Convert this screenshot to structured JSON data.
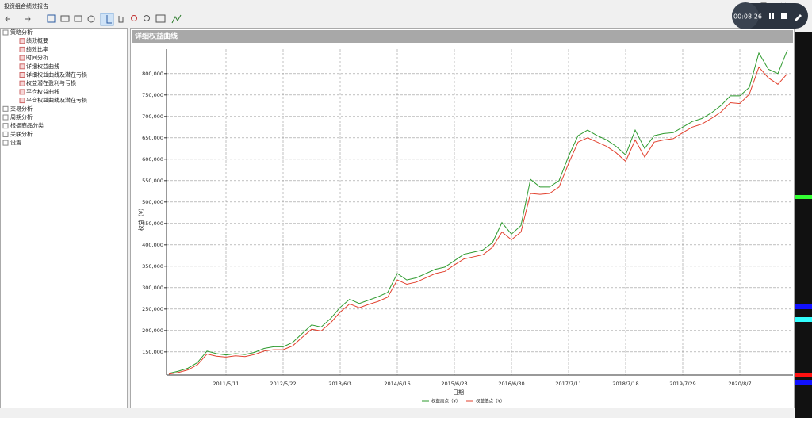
{
  "window": {
    "title": "投资组合绩效报告",
    "timer": "00:08:26"
  },
  "tree": [
    {
      "label": "策略分析",
      "children": [
        "绩效概要",
        "绩效比率",
        "时间分析",
        "详细权益曲线",
        "详细权益曲线及潜在亏损",
        "权益潜在盈利与亏损",
        "平仓权益曲线",
        "平仓权益曲线及潜在亏损"
      ]
    },
    {
      "label": "交易分析"
    },
    {
      "label": "周期分析"
    },
    {
      "label": "根据商品分类"
    },
    {
      "label": "关联分析"
    },
    {
      "label": "设置"
    }
  ],
  "panel_title": "详细权益曲线",
  "chart_data": {
    "type": "line",
    "y_label": "权益（¥）",
    "x_label": "日期",
    "categories": [
      null,
      null,
      null,
      null,
      null,
      null,
      "2011/5/11",
      null,
      null,
      null,
      null,
      null,
      "2012/5/22",
      null,
      null,
      null,
      null,
      null,
      "2013/6/3",
      null,
      null,
      null,
      null,
      null,
      "2014/6/16",
      null,
      null,
      null,
      null,
      null,
      "2015/6/23",
      null,
      null,
      null,
      null,
      null,
      "2016/6/30",
      null,
      null,
      null,
      null,
      null,
      "2017/7/11",
      null,
      null,
      null,
      null,
      null,
      "2018/7/18",
      null,
      null,
      null,
      null,
      null,
      "2019/7/29",
      null,
      null,
      null,
      null,
      null,
      "2020/8/7",
      null,
      null,
      null,
      null,
      null
    ],
    "series": [
      {
        "name": "权益高点（¥）",
        "color": "#2e9a2e",
        "values": [
          100000,
          105000,
          112000,
          125000,
          152000,
          146000,
          143000,
          146000,
          144000,
          149000,
          158000,
          162000,
          162000,
          172000,
          193000,
          213000,
          208000,
          228000,
          254000,
          273000,
          263000,
          271000,
          279000,
          289000,
          333000,
          318000,
          323000,
          333000,
          343000,
          348000,
          363000,
          378000,
          383000,
          388000,
          405000,
          452000,
          425000,
          445000,
          553000,
          535000,
          535000,
          550000,
          607000,
          655000,
          668000,
          655000,
          645000,
          630000,
          610000,
          668000,
          625000,
          655000,
          660000,
          662000,
          675000,
          688000,
          695000,
          708000,
          725000,
          748000,
          748000,
          768000,
          848000,
          810000,
          800000,
          855000
        ]
      },
      {
        "name": "权益低点（¥）",
        "color": "#e2412e",
        "values": [
          98000,
          102000,
          108000,
          120000,
          145000,
          140000,
          138000,
          141000,
          139000,
          144000,
          152000,
          155000,
          155000,
          164000,
          184000,
          203000,
          199000,
          218000,
          243000,
          262000,
          253000,
          261000,
          268000,
          278000,
          318000,
          308000,
          313000,
          323000,
          333000,
          338000,
          353000,
          367000,
          372000,
          377000,
          394000,
          430000,
          412000,
          430000,
          520000,
          518000,
          520000,
          535000,
          590000,
          640000,
          650000,
          640000,
          630000,
          615000,
          595000,
          645000,
          605000,
          640000,
          645000,
          648000,
          662000,
          675000,
          682000,
          695000,
          710000,
          732000,
          730000,
          752000,
          815000,
          790000,
          775000,
          800000
        ]
      }
    ],
    "ylim": [
      96000,
      857000
    ],
    "yticks": [
      {
        "value": 150000,
        "label": "150,000"
      },
      {
        "value": 200000,
        "label": "200,000"
      },
      {
        "value": 250000,
        "label": "250,000"
      },
      {
        "value": 300000,
        "label": "300,000"
      },
      {
        "value": 350000,
        "label": "350,000"
      },
      {
        "value": 400000,
        "label": "400,000"
      },
      {
        "value": 450000,
        "label": "450,000"
      },
      {
        "value": 500000,
        "label": "500,000"
      },
      {
        "value": 550000,
        "label": "550,000"
      },
      {
        "value": 600000,
        "label": "600,000"
      },
      {
        "value": 650000,
        "label": "650,000"
      },
      {
        "value": 700000,
        "label": "700,000"
      },
      {
        "value": 750000,
        "label": "750,000"
      },
      {
        "value": 800000,
        "label": "800,000"
      }
    ],
    "grid": true
  }
}
